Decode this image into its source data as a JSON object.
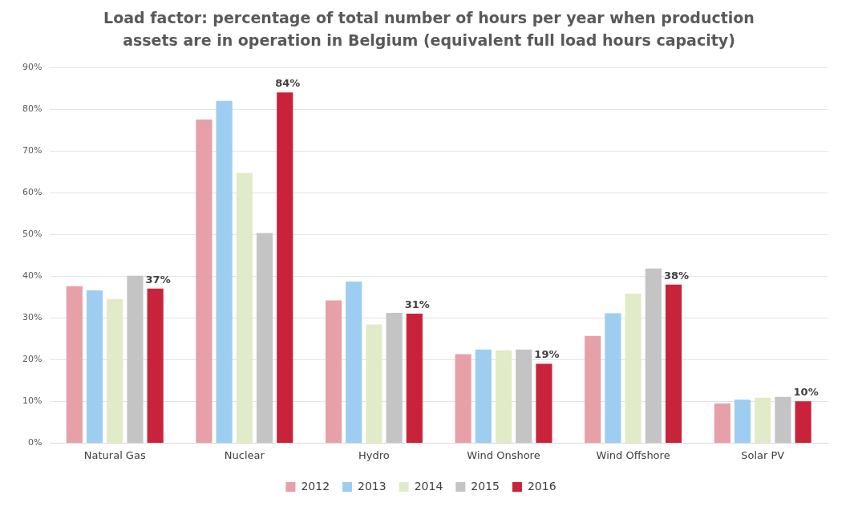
{
  "chart_data": {
    "type": "bar",
    "title": "Load factor: percentage of total number of hours per year when production assets are in operation in Belgium (equivalent full load hours capacity)",
    "categories": [
      "Natural Gas",
      "Nuclear",
      "Hydro",
      "Wind Onshore",
      "Wind Offshore",
      "Solar PV"
    ],
    "series": [
      {
        "name": "2012",
        "color": "#e8a0a8",
        "values": [
          37.6,
          77.5,
          34.2,
          21.3,
          25.7,
          9.5
        ]
      },
      {
        "name": "2013",
        "color": "#9dcdf0",
        "values": [
          36.6,
          82.0,
          38.7,
          22.4,
          31.1,
          10.4
        ]
      },
      {
        "name": "2014",
        "color": "#e2ebc8",
        "values": [
          34.5,
          64.7,
          28.4,
          22.2,
          35.8,
          10.9
        ]
      },
      {
        "name": "2015",
        "color": "#c4c4c4",
        "values": [
          40.1,
          50.3,
          31.2,
          22.4,
          41.8,
          11.1
        ]
      },
      {
        "name": "2016",
        "color": "#c8233a",
        "values": [
          37,
          84,
          31,
          19,
          38,
          10
        ],
        "value_labels": [
          "37%",
          "84%",
          "31%",
          "19%",
          "38%",
          "10%"
        ]
      }
    ],
    "ylim": [
      0,
      90
    ],
    "yticks": [
      {
        "value": 0,
        "label": "0%"
      },
      {
        "value": 10,
        "label": "10%"
      },
      {
        "value": 20,
        "label": "20%"
      },
      {
        "value": 30,
        "label": "30%"
      },
      {
        "value": 40,
        "label": "40%"
      },
      {
        "value": 50,
        "label": "50%"
      },
      {
        "value": 60,
        "label": "60%"
      },
      {
        "value": 70,
        "label": "70%"
      },
      {
        "value": 80,
        "label": "80%"
      },
      {
        "value": 90,
        "label": "90%"
      }
    ],
    "grid": "y",
    "legend": "bottom"
  }
}
